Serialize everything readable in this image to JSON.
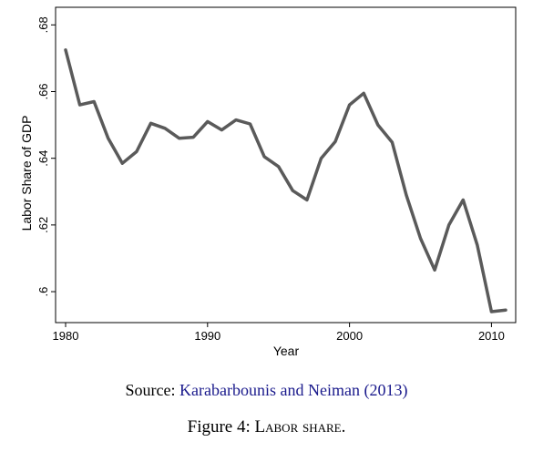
{
  "chart_data": {
    "type": "line",
    "xlabel": "Year",
    "ylabel": "Labor Share of GDP",
    "xlim": [
      1980,
      2011
    ],
    "ylim": [
      0.594,
      0.682
    ],
    "xticks": [
      1980,
      1990,
      2000,
      2010
    ],
    "yticks": [
      0.6,
      0.62,
      0.64,
      0.66,
      0.68
    ],
    "ytick_labels": [
      ".6",
      ".62",
      ".64",
      ".66",
      ".68"
    ],
    "line_color": "#5a5a5a",
    "grid": false,
    "series": [
      {
        "x": [
          1980,
          1981,
          1982,
          1983,
          1984,
          1985,
          1986,
          1987,
          1988,
          1989,
          1990,
          1991,
          1992,
          1993,
          1994,
          1995,
          1996,
          1997,
          1998,
          1999,
          2000,
          2001,
          2002,
          2003,
          2004,
          2005,
          2006,
          2007,
          2008,
          2009,
          2010,
          2011
        ],
        "values": [
          0.6725,
          0.656,
          0.657,
          0.646,
          0.6385,
          0.642,
          0.6505,
          0.649,
          0.646,
          0.6463,
          0.651,
          0.6485,
          0.6515,
          0.6503,
          0.6405,
          0.6375,
          0.6303,
          0.6275,
          0.64,
          0.645,
          0.656,
          0.6595,
          0.65,
          0.6448,
          0.629,
          0.616,
          0.6065,
          0.62,
          0.6275,
          0.614,
          0.594,
          0.5945
        ]
      }
    ]
  },
  "caption": {
    "source_prefix": "Source: ",
    "source_name": "Karabarbounis and Neiman",
    "source_year": "(2013)",
    "figure_label": "Figure 4: ",
    "figure_title": "Labor share."
  }
}
